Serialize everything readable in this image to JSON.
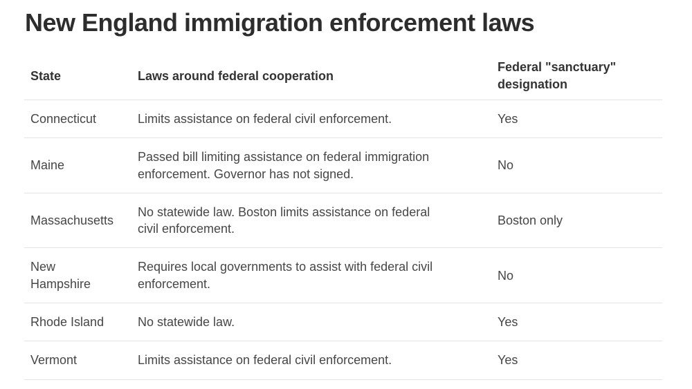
{
  "title": "New England immigration enforcement laws",
  "chart_data": {
    "type": "table",
    "title": "New England immigration enforcement laws",
    "columns": [
      "State",
      "Laws around federal cooperation",
      "Federal \"sanctuary\" designation"
    ],
    "rows": [
      [
        "Connecticut",
        "Limits assistance on federal civil enforcement.",
        "Yes"
      ],
      [
        "Maine",
        "Passed bill limiting assistance on federal immigration enforcement. Governor has not signed.",
        "No"
      ],
      [
        "Massachusetts",
        "No statewide law. Boston limits assistance on federal civil enforcement.",
        "Boston only"
      ],
      [
        "New Hampshire",
        "Requires local governments to assist with federal civil enforcement.",
        "No"
      ],
      [
        "Rhode Island",
        "No statewide law.",
        "Yes"
      ],
      [
        "Vermont",
        "Limits assistance on federal civil enforcement.",
        "Yes"
      ]
    ],
    "layout_hints": {
      "gridlines": "horizontal row dividers only",
      "header_style": "bold, no background fill",
      "legend": "none"
    }
  },
  "colors": {
    "background": "#ffffff",
    "title_text": "#2d2d2d",
    "header_text": "#333333",
    "body_text": "#464646",
    "divider": "#e3e3e3"
  }
}
